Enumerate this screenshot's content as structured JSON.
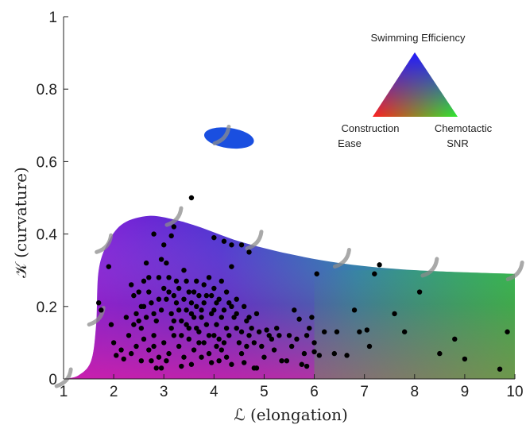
{
  "chart_data": {
    "type": "scatter",
    "xlabel": "ℒ (elongation)",
    "ylabel": "𝒦 (curvature)",
    "xlim": [
      1,
      10
    ],
    "ylim": [
      0,
      1
    ],
    "x_ticks": [
      "1",
      "2",
      "3",
      "4",
      "5",
      "6",
      "7",
      "8",
      "9",
      "10"
    ],
    "y_ticks": [
      "0",
      "0.2",
      "0.4",
      "0.6",
      "0.8",
      "1"
    ],
    "grid": false,
    "legend": {
      "placement": "top-right",
      "title": "Swimming Efficiency",
      "left_label_1": "Construction",
      "left_label_2": "Ease",
      "right_label_1": "Chemotactic",
      "right_label_2": "SNR",
      "colors": {
        "top": "#1f1aff",
        "left": "#ff1f1f",
        "right": "#2ee82e"
      }
    },
    "region_boundary": [
      [
        1.0,
        0.0
      ],
      [
        1.3,
        0.01
      ],
      [
        1.55,
        0.05
      ],
      [
        1.65,
        0.15
      ],
      [
        1.7,
        0.3
      ],
      [
        1.9,
        0.38
      ],
      [
        2.2,
        0.43
      ],
      [
        2.7,
        0.45
      ],
      [
        3.2,
        0.44
      ],
      [
        3.7,
        0.42
      ],
      [
        4.5,
        0.38
      ],
      [
        5.5,
        0.345
      ],
      [
        6.5,
        0.32
      ],
      [
        7.5,
        0.305
      ],
      [
        8.5,
        0.297
      ],
      [
        10.0,
        0.29
      ],
      [
        10.0,
        0.0
      ]
    ],
    "blob": {
      "x": 4.3,
      "y": 0.665,
      "rx": 0.5,
      "ry": 0.028
    },
    "gray_marks": [
      [
        1.05,
        0.0
      ],
      [
        1.7,
        0.17
      ],
      [
        1.85,
        0.37
      ],
      [
        3.25,
        0.445
      ],
      [
        4.85,
        0.38
      ],
      [
        6.6,
        0.33
      ],
      [
        8.35,
        0.305
      ],
      [
        10.05,
        0.295
      ],
      [
        4.2,
        0.67
      ]
    ],
    "points": [
      [
        3.55,
        0.5
      ],
      [
        7.3,
        0.315
      ],
      [
        7.2,
        0.29
      ],
      [
        8.1,
        0.24
      ],
      [
        6.05,
        0.29
      ],
      [
        6.8,
        0.19
      ],
      [
        7.6,
        0.18
      ],
      [
        9.85,
        0.13
      ],
      [
        8.8,
        0.11
      ],
      [
        9.0,
        0.055
      ],
      [
        9.7,
        0.027
      ],
      [
        8.5,
        0.07
      ],
      [
        7.8,
        0.13
      ],
      [
        7.05,
        0.135
      ],
      [
        6.65,
        0.065
      ],
      [
        6.2,
        0.13
      ],
      [
        6.0,
        0.1
      ],
      [
        5.85,
        0.035
      ],
      [
        5.75,
        0.04
      ],
      [
        5.6,
        0.19
      ],
      [
        5.7,
        0.165
      ],
      [
        5.9,
        0.14
      ],
      [
        6.0,
        0.075
      ],
      [
        5.65,
        0.11
      ],
      [
        5.45,
        0.05
      ],
      [
        5.25,
        0.14
      ],
      [
        5.15,
        0.11
      ],
      [
        5.05,
        0.135
      ],
      [
        4.95,
        0.09
      ],
      [
        4.85,
        0.03
      ],
      [
        4.8,
        0.03
      ],
      [
        4.7,
        0.35
      ],
      [
        4.55,
        0.37
      ],
      [
        4.35,
        0.37
      ],
      [
        4.2,
        0.38
      ],
      [
        4.0,
        0.39
      ],
      [
        3.2,
        0.42
      ],
      [
        3.15,
        0.395
      ],
      [
        3.0,
        0.37
      ],
      [
        2.8,
        0.4
      ],
      [
        1.9,
        0.31
      ],
      [
        1.7,
        0.21
      ],
      [
        1.75,
        0.19
      ],
      [
        1.95,
        0.15
      ],
      [
        2.0,
        0.1
      ],
      [
        2.05,
        0.065
      ],
      [
        2.2,
        0.055
      ],
      [
        2.3,
        0.12
      ],
      [
        2.35,
        0.26
      ],
      [
        2.4,
        0.23
      ],
      [
        2.5,
        0.16
      ],
      [
        2.45,
        0.09
      ],
      [
        2.6,
        0.2
      ],
      [
        2.55,
        0.14
      ],
      [
        2.65,
        0.32
      ],
      [
        2.7,
        0.28
      ],
      [
        2.75,
        0.05
      ],
      [
        2.8,
        0.12
      ],
      [
        2.85,
        0.03
      ],
      [
        2.9,
        0.28
      ],
      [
        2.95,
        0.33
      ],
      [
        3.05,
        0.32
      ],
      [
        3.1,
        0.28
      ],
      [
        3.2,
        0.23
      ],
      [
        3.3,
        0.19
      ],
      [
        3.4,
        0.3
      ],
      [
        3.45,
        0.27
      ],
      [
        3.5,
        0.24
      ],
      [
        3.55,
        0.21
      ],
      [
        3.6,
        0.17
      ],
      [
        3.65,
        0.14
      ],
      [
        3.7,
        0.1
      ],
      [
        3.75,
        0.06
      ],
      [
        3.8,
        0.26
      ],
      [
        3.9,
        0.28
      ],
      [
        3.95,
        0.23
      ],
      [
        4.0,
        0.19
      ],
      [
        4.05,
        0.15
      ],
      [
        4.1,
        0.11
      ],
      [
        4.15,
        0.08
      ],
      [
        4.25,
        0.24
      ],
      [
        4.3,
        0.21
      ],
      [
        4.35,
        0.31
      ],
      [
        4.4,
        0.17
      ],
      [
        4.45,
        0.14
      ],
      [
        4.5,
        0.1
      ],
      [
        4.55,
        0.07
      ],
      [
        4.6,
        0.2
      ],
      [
        4.65,
        0.16
      ],
      [
        4.7,
        0.12
      ],
      [
        2.55,
        0.2
      ],
      [
        2.65,
        0.17
      ],
      [
        2.75,
        0.21
      ],
      [
        2.85,
        0.16
      ],
      [
        2.95,
        0.19
      ],
      [
        3.05,
        0.22
      ],
      [
        3.15,
        0.18
      ],
      [
        3.25,
        0.21
      ],
      [
        3.35,
        0.16
      ],
      [
        3.45,
        0.19
      ],
      [
        3.55,
        0.18
      ],
      [
        3.65,
        0.2
      ],
      [
        3.75,
        0.17
      ],
      [
        3.85,
        0.15
      ],
      [
        3.95,
        0.18
      ],
      [
        4.05,
        0.21
      ],
      [
        4.15,
        0.17
      ],
      [
        4.25,
        0.14
      ],
      [
        2.6,
        0.11
      ],
      [
        2.7,
        0.08
      ],
      [
        2.8,
        0.09
      ],
      [
        2.9,
        0.06
      ],
      [
        3.0,
        0.1
      ],
      [
        3.1,
        0.07
      ],
      [
        3.2,
        0.12
      ],
      [
        3.3,
        0.09
      ],
      [
        3.4,
        0.06
      ],
      [
        3.5,
        0.11
      ],
      [
        3.6,
        0.08
      ],
      [
        3.7,
        0.13
      ],
      [
        3.8,
        0.1
      ],
      [
        3.9,
        0.07
      ],
      [
        4.0,
        0.12
      ],
      [
        4.1,
        0.05
      ],
      [
        4.2,
        0.1
      ],
      [
        4.3,
        0.12
      ],
      [
        2.45,
        0.18
      ],
      [
        2.5,
        0.24
      ],
      [
        2.6,
        0.27
      ],
      [
        2.7,
        0.24
      ],
      [
        2.8,
        0.18
      ],
      [
        2.9,
        0.22
      ],
      [
        3.0,
        0.25
      ],
      [
        3.1,
        0.24
      ],
      [
        3.2,
        0.16
      ],
      [
        3.3,
        0.25
      ],
      [
        3.4,
        0.22
      ],
      [
        3.5,
        0.14
      ],
      [
        3.6,
        0.24
      ],
      [
        3.7,
        0.23
      ],
      [
        3.8,
        0.21
      ],
      [
        3.9,
        0.12
      ],
      [
        4.0,
        0.25
      ],
      [
        4.1,
        0.22
      ],
      [
        4.2,
        0.19
      ],
      [
        4.35,
        0.2
      ],
      [
        4.45,
        0.22
      ],
      [
        4.55,
        0.13
      ],
      [
        4.65,
        0.09
      ],
      [
        4.75,
        0.14
      ],
      [
        4.8,
        0.1
      ],
      [
        4.85,
        0.18
      ],
      [
        4.9,
        0.13
      ],
      [
        5.0,
        0.06
      ],
      [
        5.1,
        0.12
      ],
      [
        5.2,
        0.08
      ],
      [
        5.3,
        0.12
      ],
      [
        5.35,
        0.05
      ],
      [
        5.5,
        0.12
      ],
      [
        5.55,
        0.09
      ],
      [
        5.8,
        0.07
      ],
      [
        6.1,
        0.065
      ],
      [
        6.4,
        0.07
      ],
      [
        6.45,
        0.13
      ],
      [
        5.85,
        0.12
      ],
      [
        5.95,
        0.17
      ],
      [
        7.1,
        0.09
      ],
      [
        6.9,
        0.13
      ],
      [
        3.05,
        0.05
      ],
      [
        2.95,
        0.03
      ],
      [
        3.35,
        0.035
      ],
      [
        3.55,
        0.04
      ],
      [
        3.95,
        0.045
      ],
      [
        4.35,
        0.04
      ],
      [
        4.6,
        0.045
      ],
      [
        2.35,
        0.07
      ],
      [
        2.25,
        0.17
      ],
      [
        2.15,
        0.08
      ],
      [
        3.25,
        0.27
      ],
      [
        3.15,
        0.14
      ],
      [
        3.45,
        0.15
      ],
      [
        3.65,
        0.27
      ],
      [
        3.85,
        0.23
      ],
      [
        4.15,
        0.27
      ],
      [
        4.45,
        0.18
      ],
      [
        4.7,
        0.17
      ],
      [
        2.4,
        0.15
      ],
      [
        2.55,
        0.05
      ],
      [
        3.75,
        0.19
      ],
      [
        3.35,
        0.12
      ],
      [
        4.05,
        0.09
      ],
      [
        4.25,
        0.06
      ]
    ]
  }
}
